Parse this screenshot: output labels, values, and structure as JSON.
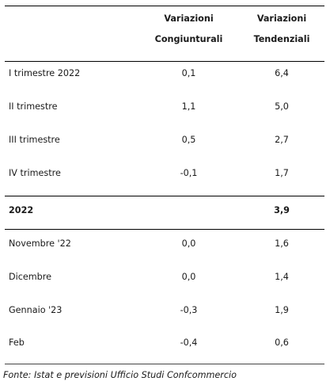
{
  "table": {
    "headers": {
      "col1_line1": "Variazioni",
      "col1_line2": "Congiunturali",
      "col2_line1": "Variazioni",
      "col2_line2": "Tendenziali"
    },
    "rows": [
      {
        "label": "I trimestre 2022",
        "cong": "0,1",
        "tend": "6,4"
      },
      {
        "label": "II trimestre",
        "cong": "1,1",
        "tend": "5,0"
      },
      {
        "label": "III trimestre",
        "cong": "0,5",
        "tend": "2,7"
      },
      {
        "label": "IV trimestre",
        "cong": "-0,1",
        "tend": "1,7"
      },
      {
        "label": "2022",
        "cong": "",
        "tend": "3,9"
      },
      {
        "label": "Novembre '22",
        "cong": "0,0",
        "tend": "1,6"
      },
      {
        "label": "Dicembre",
        "cong": "0,0",
        "tend": "1,4"
      },
      {
        "label": "Gennaio '23",
        "cong": "-0,3",
        "tend": "1,9"
      },
      {
        "label": "Feb",
        "cong": "-0,4",
        "tend": "0,6"
      }
    ]
  },
  "source": "Fonte: Istat e previsioni Ufficio Studi Confcommercio"
}
